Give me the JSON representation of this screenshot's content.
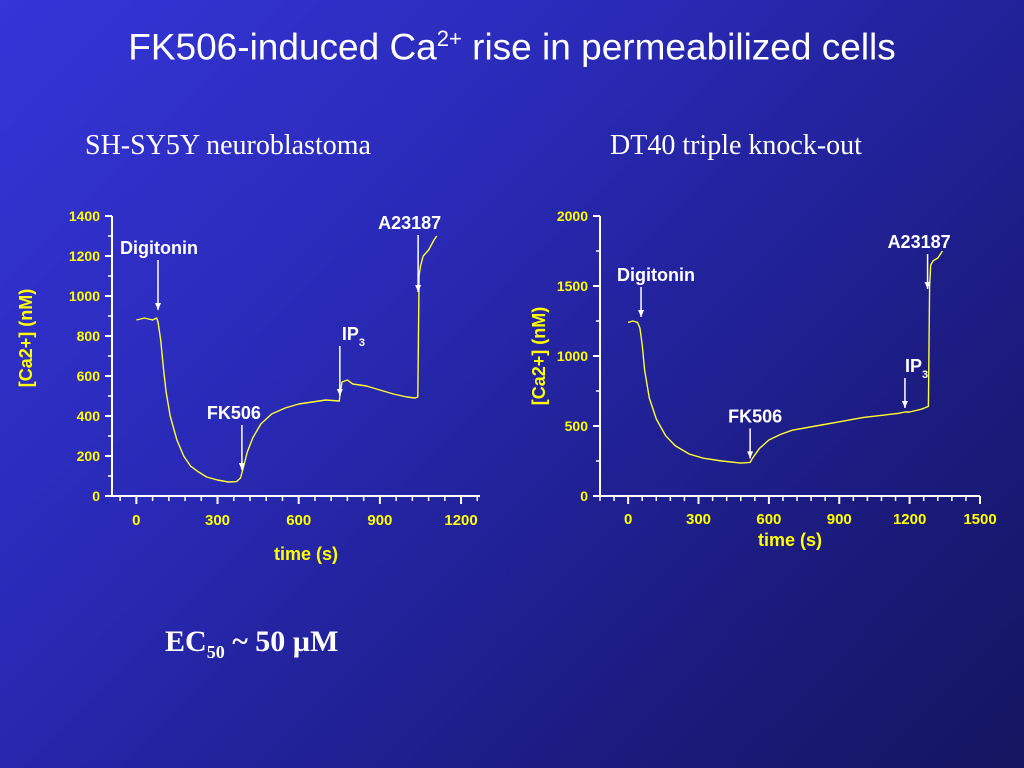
{
  "slide": {
    "title_pre": "FK506-induced Ca",
    "title_sup": "2+",
    "title_post": " rise in permeabilized cells",
    "ec_pre": "EC",
    "ec_sub": "50",
    "ec_post": " ~ 50 µM"
  },
  "colors": {
    "trace": "#ffff33",
    "text_yellow": "#ffff00",
    "axis": "#ffffff"
  },
  "chart_data": [
    {
      "type": "line",
      "subtitle": "SH-SY5Y neuroblastoma",
      "xlabel": "time (s)",
      "ylabel": "[Ca2+] (nM)",
      "xlim": [
        -90,
        1270
      ],
      "ylim": [
        0,
        1400
      ],
      "xticks": [
        "0",
        "300",
        "600",
        "900",
        "1200"
      ],
      "xtick_values": [
        0,
        300,
        600,
        900,
        1200
      ],
      "yticks": [
        "0",
        "200",
        "400",
        "600",
        "800",
        "1000",
        "1200",
        "1400"
      ],
      "ytick_values": [
        0,
        200,
        400,
        600,
        800,
        1000,
        1200,
        1400
      ],
      "series": [
        {
          "x": [
            0,
            30,
            60,
            75,
            80,
            90,
            100,
            110,
            125,
            150,
            175,
            200,
            230,
            260,
            300,
            340,
            370,
            385,
            395,
            410,
            430,
            460,
            500,
            550,
            600,
            650,
            700,
            750,
            752,
            760,
            780,
            800,
            850,
            900,
            950,
            1000,
            1030,
            1040,
            1045,
            1050,
            1060,
            1080,
            1100,
            1110
          ],
          "y": [
            880,
            890,
            880,
            890,
            870,
            780,
            640,
            520,
            400,
            280,
            200,
            150,
            120,
            95,
            80,
            70,
            72,
            90,
            140,
            220,
            290,
            360,
            410,
            440,
            460,
            470,
            480,
            475,
            500,
            570,
            580,
            560,
            550,
            530,
            510,
            495,
            490,
            495,
            1100,
            1150,
            1200,
            1230,
            1280,
            1300
          ]
        }
      ],
      "annotations": [
        {
          "text": "Digitonin",
          "x": 80,
          "y": 900
        },
        {
          "text": "FK506",
          "x": 390,
          "y": 100
        },
        {
          "text": "IP",
          "sub": "3",
          "x": 752,
          "y": 480
        },
        {
          "text": "A23187",
          "x": 1045,
          "y": 1000
        }
      ]
    },
    {
      "type": "line",
      "subtitle": "DT40 triple knock-out",
      "xlabel": "time (s)",
      "ylabel": "[Ca2+] (nM)",
      "xlim": [
        -120,
        1500
      ],
      "ylim": [
        0,
        2000
      ],
      "xticks": [
        "0",
        "300",
        "600",
        "900",
        "1200",
        "1500"
      ],
      "xtick_values": [
        0,
        300,
        600,
        900,
        1200,
        1500
      ],
      "yticks": [
        "0",
        "500",
        "1000",
        "1500",
        "2000"
      ],
      "ytick_values": [
        0,
        500,
        1000,
        1500,
        2000
      ],
      "series": [
        {
          "x": [
            0,
            20,
            40,
            50,
            60,
            70,
            90,
            120,
            160,
            200,
            260,
            320,
            400,
            480,
            520,
            530,
            560,
            600,
            650,
            700,
            800,
            900,
            1000,
            1100,
            1150,
            1180,
            1200,
            1250,
            1280,
            1285,
            1290,
            1300,
            1320,
            1340
          ],
          "y": [
            1240,
            1250,
            1240,
            1200,
            1080,
            900,
            700,
            550,
            430,
            360,
            300,
            270,
            250,
            235,
            240,
            270,
            340,
            400,
            440,
            470,
            500,
            530,
            560,
            580,
            590,
            600,
            600,
            620,
            640,
            1500,
            1650,
            1680,
            1700,
            1750
          ]
        }
      ],
      "annotations": [
        {
          "text": "Digitonin",
          "x": 55,
          "y": 1250
        },
        {
          "text": "FK506",
          "x": 520,
          "y": 240
        },
        {
          "text": "IP",
          "sub": "3",
          "x": 1180,
          "y": 600
        },
        {
          "text": "A23187",
          "x": 1285,
          "y": 1450
        }
      ]
    }
  ]
}
